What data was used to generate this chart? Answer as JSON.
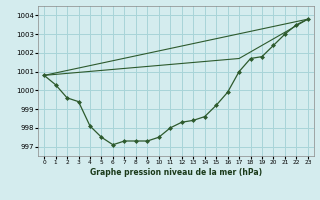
{
  "background_color": "#d4ecee",
  "grid_color": "#a8d4d8",
  "line_color": "#2d5a2d",
  "title": "Graphe pression niveau de la mer (hPa)",
  "xlim": [
    -0.5,
    23.5
  ],
  "ylim": [
    996.5,
    1004.5
  ],
  "xticks": [
    0,
    1,
    2,
    3,
    4,
    5,
    6,
    7,
    8,
    9,
    10,
    11,
    12,
    13,
    14,
    15,
    16,
    17,
    18,
    19,
    20,
    21,
    22,
    23
  ],
  "yticks": [
    997,
    998,
    999,
    1000,
    1001,
    1002,
    1003,
    1004
  ],
  "curve": {
    "x": [
      0,
      1,
      2,
      3,
      4,
      5,
      6,
      7,
      8,
      9,
      10,
      11,
      12,
      13,
      14,
      15,
      16,
      17,
      18,
      19,
      20,
      21,
      22,
      23
    ],
    "y": [
      1000.8,
      1000.3,
      999.6,
      999.4,
      998.1,
      997.5,
      997.1,
      997.3,
      997.3,
      997.3,
      997.5,
      998.0,
      998.3,
      998.4,
      998.6,
      999.2,
      999.9,
      1001.0,
      1001.7,
      1001.8,
      1002.4,
      1003.0,
      1003.5,
      1003.8
    ]
  },
  "line1": {
    "x": [
      0,
      23
    ],
    "y": [
      1000.8,
      1003.8
    ]
  },
  "line2": {
    "x": [
      0,
      17,
      23
    ],
    "y": [
      1000.8,
      1001.7,
      1003.8
    ]
  },
  "line3": {
    "x": [
      0,
      23
    ],
    "y": [
      1000.8,
      1003.8
    ]
  }
}
